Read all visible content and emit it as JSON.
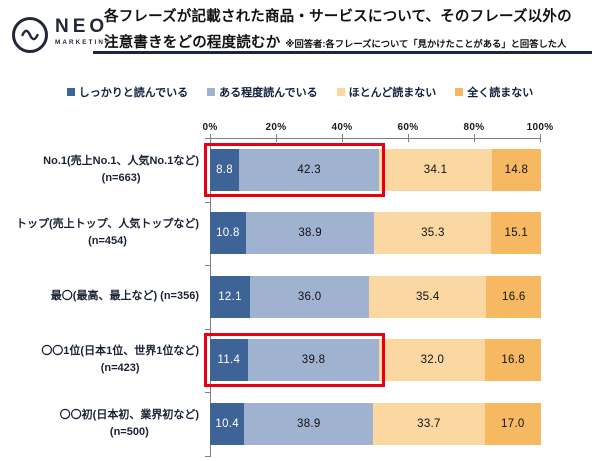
{
  "logo": {
    "name": "NEO",
    "sub": "MARKETING"
  },
  "header": {
    "title_line1": "各フレーズが記載された商品・サービスについて、そのフレーズ以外の",
    "title_line2": "注意書きをどの程度読むか",
    "note": "※回答者:各フレーズについて「見かけたことがある」と回答した人"
  },
  "colors": {
    "accent_rule": "#1b2442",
    "highlight_border": "#e60012",
    "axis": "#7f7f7f"
  },
  "chart_data": {
    "type": "bar",
    "stacked": true,
    "orientation": "horizontal",
    "title": "各フレーズが記載された商品・サービスについて、そのフレーズ以外の注意書きをどの程度読むか",
    "subtitle": "※回答者:各フレーズについて「見かけたことがある」と回答した人",
    "xlim": [
      0,
      100
    ],
    "axis_ticks": [
      "0%",
      "20%",
      "40%",
      "60%",
      "80%",
      "100%"
    ],
    "grid": false,
    "legend_position": "top",
    "series": [
      {
        "name": "しっかりと読んでいる",
        "color": "#3e6396",
        "text_color": "#ffffff",
        "values": [
          8.8,
          10.8,
          12.1,
          11.4,
          10.4
        ]
      },
      {
        "name": "ある程度読んでいる",
        "color": "#9fb3d1",
        "text_color": "#111111",
        "values": [
          42.3,
          38.9,
          36.0,
          39.8,
          38.9
        ]
      },
      {
        "name": "ほとんど読まない",
        "color": "#fbd7a2",
        "text_color": "#111111",
        "values": [
          34.1,
          35.3,
          35.4,
          32.0,
          33.7
        ]
      },
      {
        "name": "全く読まない",
        "color": "#f6b961",
        "text_color": "#111111",
        "values": [
          14.8,
          15.1,
          16.6,
          16.8,
          17.0
        ]
      }
    ],
    "categories": [
      {
        "lines": [
          "No.1(売上No.1、人気No.1など)",
          "(n=663)"
        ],
        "highlighted": true
      },
      {
        "lines": [
          "トップ(売上トップ、人気トップなど)",
          "(n=454)"
        ],
        "highlighted": false
      },
      {
        "lines": [
          "最〇(最高、最上など) (n=356)"
        ],
        "highlighted": false
      },
      {
        "lines": [
          "〇〇1位(日本1位、世界1位など)",
          "(n=423)"
        ],
        "highlighted": true
      },
      {
        "lines": [
          "〇〇初(日本初、業界初など)",
          "(n=500)"
        ],
        "highlighted": false
      }
    ],
    "highlight_note": "red boxes outline the combined reading segments of rows 1 and 4"
  }
}
